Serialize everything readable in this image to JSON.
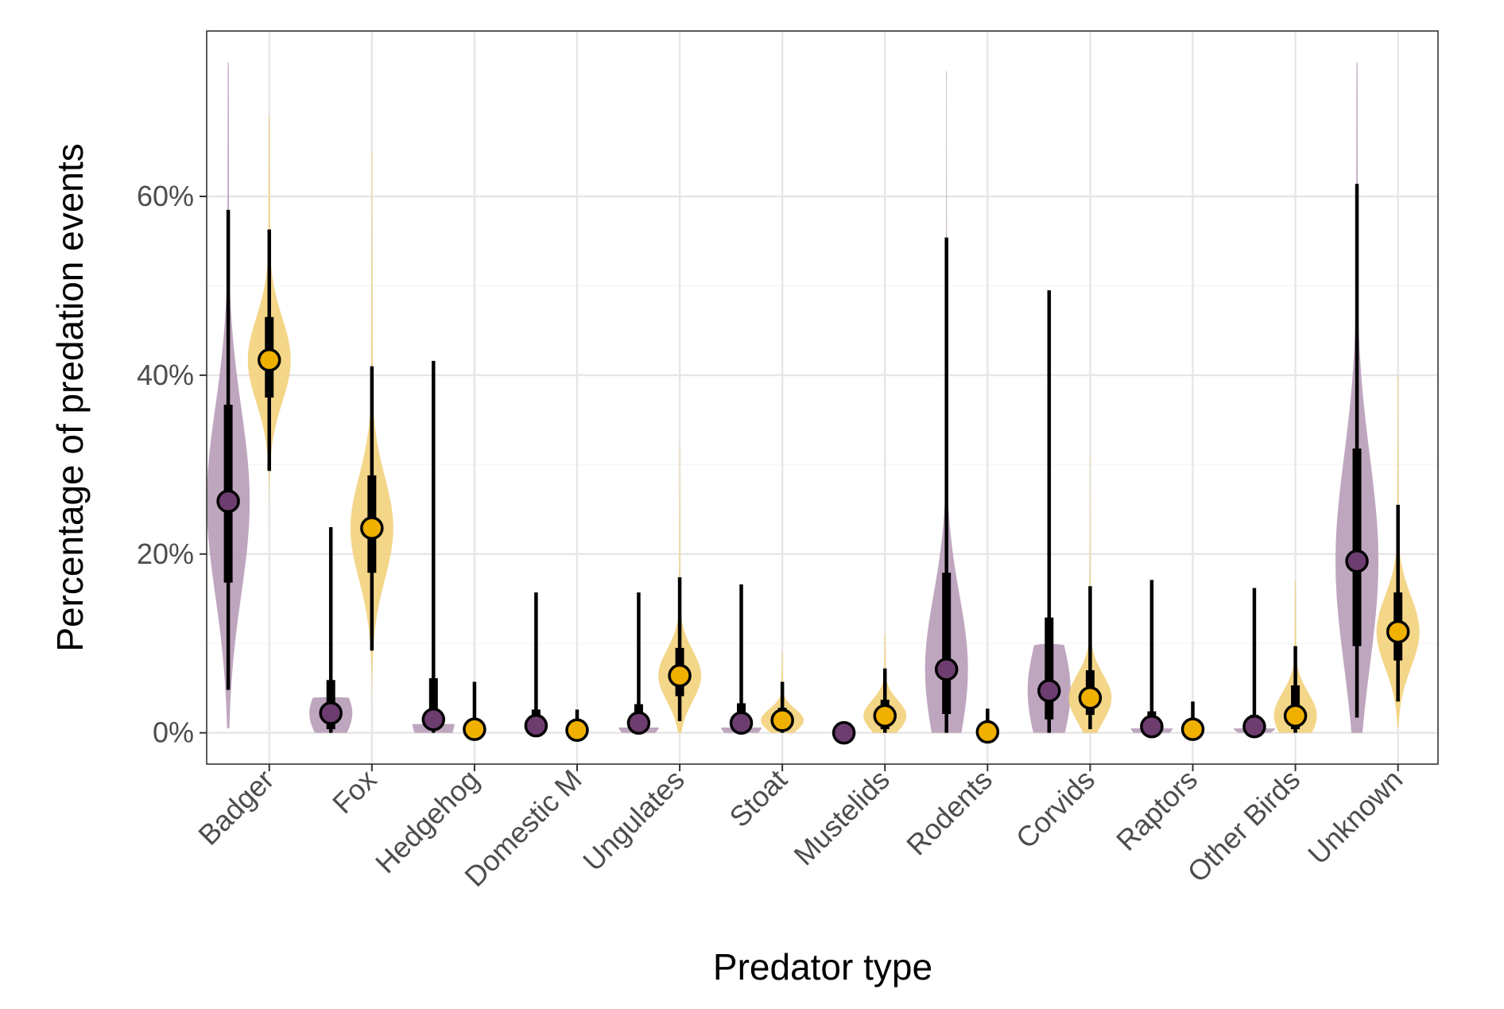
{
  "chart_data": {
    "type": "violin",
    "xlabel": "Predator type",
    "ylabel": "Percentage of predation events",
    "ylim": [
      -3.5,
      78.5
    ],
    "yticks": [
      0,
      20,
      40,
      60
    ],
    "ytick_labels": [
      "0%",
      "20%",
      "40%",
      "60%"
    ],
    "grid": true,
    "colors": {
      "series1": "#6e3d70",
      "series1_violin": "#b89cb8",
      "series2": "#f0b000",
      "series2_violin": "#f3d27c"
    },
    "categories": [
      "Badger",
      "Fox",
      "Hedgehog",
      "Domestic M",
      "Ungulates",
      "Stoat",
      "Mustelids",
      "Rodents",
      "Corvids",
      "Raptors",
      "Other Birds",
      "Unknown"
    ],
    "series": [
      {
        "values": [
          {
            "median": 25.9,
            "q66": [
              16.8,
              36.7
            ],
            "q95": [
              4.8,
              58.5
            ],
            "violin": [
              0.5,
              75
            ]
          },
          {
            "median": 2.2,
            "q66": [
              0.4,
              5.9
            ],
            "q95": [
              0,
              23
            ],
            "violin": [
              0,
              4
            ]
          },
          {
            "median": 1.5,
            "q66": [
              0.4,
              6.1
            ],
            "q95": [
              0,
              41.6
            ],
            "violin": [
              0,
              1
            ]
          },
          {
            "median": 0.8,
            "q66": [
              0.2,
              2.6
            ],
            "q95": [
              0,
              15.7
            ],
            "violin": null
          },
          {
            "median": 1.1,
            "q66": [
              0.2,
              3.2
            ],
            "q95": [
              0,
              15.7
            ],
            "violin": [
              0,
              0.6
            ]
          },
          {
            "median": 1.1,
            "q66": [
              0.2,
              3.3
            ],
            "q95": [
              0,
              16.6
            ],
            "violin": [
              0,
              0.6
            ]
          },
          {
            "median": 0,
            "q66": [
              0,
              0
            ],
            "q95": [
              0,
              0
            ],
            "violin": null
          },
          {
            "median": 7.1,
            "q66": [
              2.1,
              17.9
            ],
            "q95": [
              0,
              55.4
            ],
            "violin": [
              0,
              74
            ]
          },
          {
            "median": 4.7,
            "q66": [
              1.5,
              12.9
            ],
            "q95": [
              0,
              49.5
            ],
            "violin": [
              0,
              10
            ]
          },
          {
            "median": 0.7,
            "q66": [
              0.2,
              2.4
            ],
            "q95": [
              0,
              17.1
            ],
            "violin": [
              0,
              0.5
            ]
          },
          {
            "median": 0.7,
            "q66": [
              0.2,
              2.0
            ],
            "q95": [
              0,
              16.2
            ],
            "violin": [
              0,
              0.5
            ]
          },
          {
            "median": 19.2,
            "q66": [
              9.7,
              31.8
            ],
            "q95": [
              1.7,
              61.4
            ],
            "violin": [
              0,
              75
            ]
          }
        ]
      },
      {
        "values": [
          {
            "median": 41.7,
            "q66": [
              37.5,
              46.5
            ],
            "q95": [
              29.3,
              56.3
            ],
            "violin": [
              20,
              69
            ]
          },
          {
            "median": 22.9,
            "q66": [
              17.9,
              28.8
            ],
            "q95": [
              9.2,
              41
            ],
            "violin": [
              0.5,
              65
            ]
          },
          {
            "median": 0.4,
            "q66": [
              0.1,
              1.0
            ],
            "q95": [
              0,
              5.7
            ],
            "violin": null
          },
          {
            "median": 0.3,
            "q66": [
              0.1,
              0.8
            ],
            "q95": [
              0,
              2.6
            ],
            "violin": null
          },
          {
            "median": 6.4,
            "q66": [
              4.1,
              9.5
            ],
            "q95": [
              1.3,
              17.4
            ],
            "violin": [
              0,
              32
            ]
          },
          {
            "median": 1.4,
            "q66": [
              0.4,
              2.8
            ],
            "q95": [
              0,
              5.7
            ],
            "violin": [
              0,
              9
            ]
          },
          {
            "median": 1.9,
            "q66": [
              0.4,
              3.7
            ],
            "q95": [
              0,
              7.2
            ],
            "violin": [
              0,
              11
            ]
          },
          {
            "median": 0.1,
            "q66": [
              0,
              0.6
            ],
            "q95": [
              0,
              2.7
            ],
            "violin": null
          },
          {
            "median": 3.9,
            "q66": [
              2.0,
              7.0
            ],
            "q95": [
              0.4,
              16.4
            ],
            "violin": [
              0,
              31
            ]
          },
          {
            "median": 0.4,
            "q66": [
              0.1,
              1.0
            ],
            "q95": [
              0,
              3.5
            ],
            "violin": null
          },
          {
            "median": 1.9,
            "q66": [
              0.4,
              5.3
            ],
            "q95": [
              0,
              9.7
            ],
            "violin": [
              0,
              17
            ]
          },
          {
            "median": 11.3,
            "q66": [
              8.1,
              15.7
            ],
            "q95": [
              3.5,
              25.5
            ],
            "violin": [
              0.6,
              40
            ]
          }
        ]
      }
    ]
  }
}
